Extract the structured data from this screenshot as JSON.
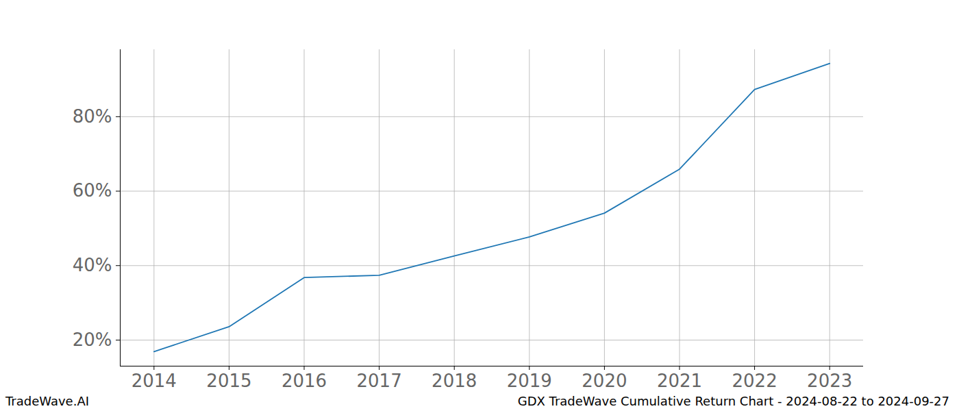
{
  "chart_data": {
    "type": "line",
    "title": "GDX TradeWave Cumulative Return Chart - 2024-08-22 to 2024-09-27",
    "annotations": [
      "TradeWave.AI"
    ],
    "x": [
      2014,
      2015,
      2016,
      2017,
      2018,
      2019,
      2020,
      2021,
      2022,
      2023
    ],
    "values": [
      16.9,
      23.6,
      36.8,
      37.4,
      42.6,
      47.7,
      54.1,
      65.9,
      87.3,
      94.3
    ],
    "color": "#1f77b4",
    "xlim": [
      2013.55,
      2023.45
    ],
    "xticks": [
      2014,
      2015,
      2016,
      2017,
      2018,
      2019,
      2020,
      2021,
      2022,
      2023
    ],
    "ylim": [
      13,
      98
    ],
    "yticks": [
      {
        "value": 20,
        "label": "20%"
      },
      {
        "value": 40,
        "label": "40%"
      },
      {
        "value": 60,
        "label": "60%"
      },
      {
        "value": 80,
        "label": "80%"
      }
    ],
    "grid": true
  }
}
